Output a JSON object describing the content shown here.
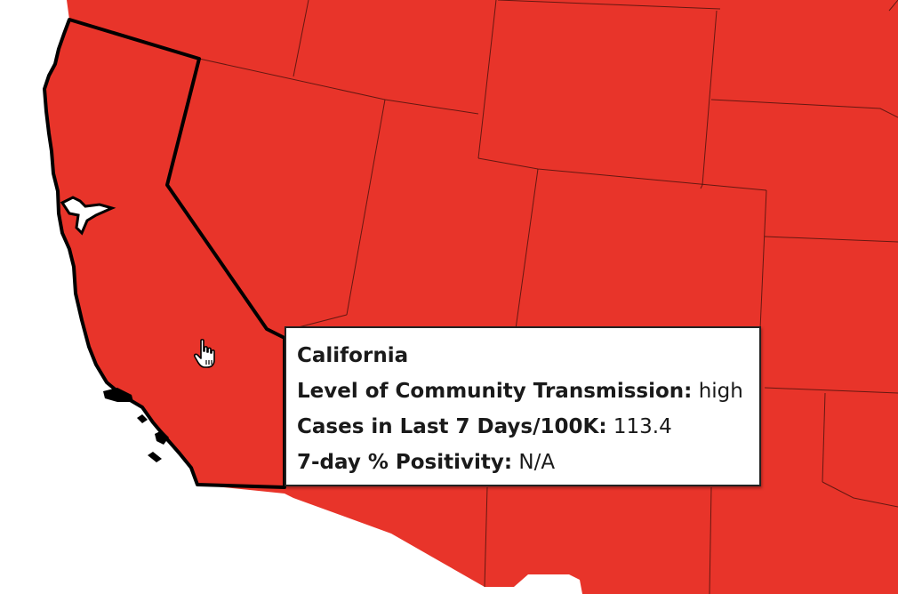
{
  "map": {
    "fill_color": "#e8342a",
    "background_color": "#ffffff",
    "highlight_border_color": "#000000"
  },
  "tooltip": {
    "state_name": "California",
    "rows": [
      {
        "label": "Level of Community Transmission:",
        "value": "high"
      },
      {
        "label": "Cases in Last 7 Days/100K:",
        "value": "113.4"
      },
      {
        "label": "7-day % Positivity:",
        "value": "N/A"
      }
    ]
  },
  "cursor": {
    "icon": "hand-pointer-icon"
  }
}
